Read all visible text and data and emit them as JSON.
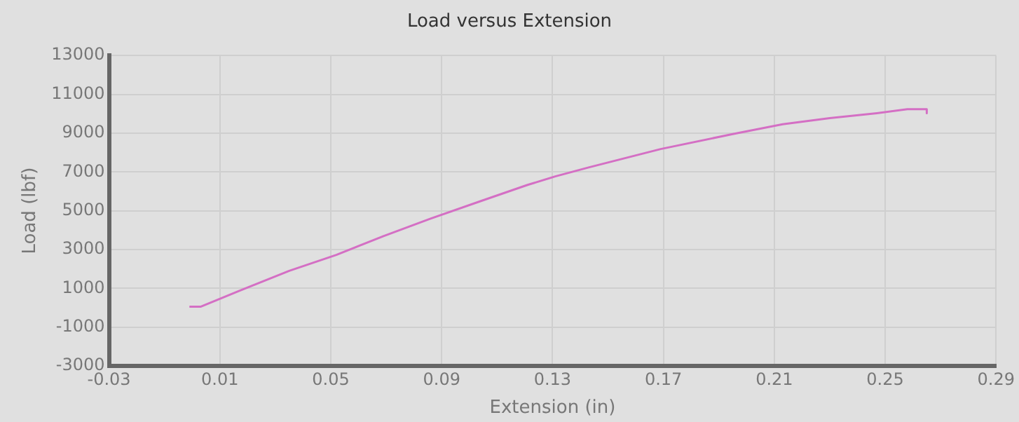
{
  "chart_data": {
    "type": "line",
    "title": "Load versus Extension",
    "xlabel": "Extension (in)",
    "ylabel": "Load (lbf)",
    "xlim": [
      -0.03,
      0.29
    ],
    "xticks": [
      -0.03,
      0.01,
      0.05,
      0.09,
      0.13,
      0.17,
      0.21,
      0.25,
      0.29
    ],
    "ylim": [
      -3000,
      13000
    ],
    "yticks": [
      -3000,
      -1000,
      1000,
      3000,
      5000,
      7000,
      9000,
      11000,
      13000
    ],
    "grid": true,
    "legend": false,
    "marker": "none",
    "line_style": "solid",
    "series": [
      {
        "color": "#d46fc4",
        "x": [
          -0.001,
          0.003,
          0.017,
          0.035,
          0.052,
          0.069,
          0.086,
          0.104,
          0.121,
          0.131,
          0.143,
          0.169,
          0.195,
          0.213,
          0.23,
          0.247,
          0.258,
          0.265,
          0.265
        ],
        "values": [
          50,
          50,
          870,
          1900,
          2720,
          3690,
          4590,
          5490,
          6330,
          6770,
          7230,
          8180,
          8950,
          9460,
          9770,
          10030,
          10230,
          10230,
          10030
        ]
      }
    ]
  }
}
